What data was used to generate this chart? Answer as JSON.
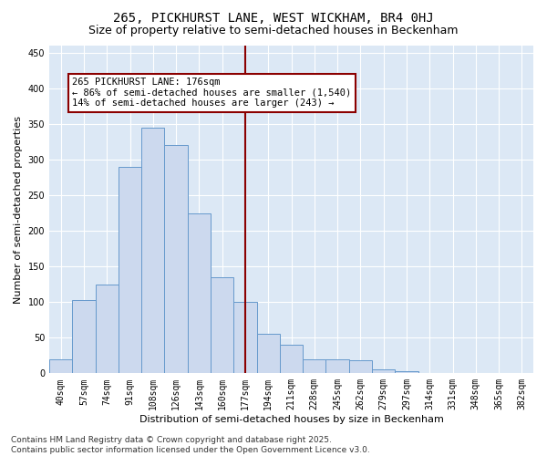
{
  "title": "265, PICKHURST LANE, WEST WICKHAM, BR4 0HJ",
  "subtitle": "Size of property relative to semi-detached houses in Beckenham",
  "xlabel": "Distribution of semi-detached houses by size in Beckenham",
  "ylabel": "Number of semi-detached properties",
  "categories": [
    "40sqm",
    "57sqm",
    "74sqm",
    "91sqm",
    "108sqm",
    "126sqm",
    "143sqm",
    "160sqm",
    "177sqm",
    "194sqm",
    "211sqm",
    "228sqm",
    "245sqm",
    "262sqm",
    "279sqm",
    "297sqm",
    "314sqm",
    "331sqm",
    "348sqm",
    "365sqm",
    "382sqm"
  ],
  "values": [
    20,
    103,
    125,
    290,
    345,
    320,
    225,
    135,
    100,
    55,
    40,
    20,
    20,
    18,
    5,
    3,
    0,
    0,
    0,
    0,
    0
  ],
  "bar_color": "#ccd9ee",
  "bar_edge_color": "#6699cc",
  "vline_color": "#8b0000",
  "vline_x_idx": 8,
  "annotation_text": "265 PICKHURST LANE: 176sqm\n← 86% of semi-detached houses are smaller (1,540)\n14% of semi-detached houses are larger (243) →",
  "annotation_box_facecolor": "#ffffff",
  "annotation_box_edgecolor": "#8b0000",
  "ylim": [
    0,
    460
  ],
  "yticks": [
    0,
    50,
    100,
    150,
    200,
    250,
    300,
    350,
    400,
    450
  ],
  "background_color": "#dce8f5",
  "footer": "Contains HM Land Registry data © Crown copyright and database right 2025.\nContains public sector information licensed under the Open Government Licence v3.0.",
  "title_fontsize": 10,
  "subtitle_fontsize": 9,
  "axis_label_fontsize": 8,
  "tick_fontsize": 7,
  "annotation_fontsize": 7.5,
  "footer_fontsize": 6.5
}
